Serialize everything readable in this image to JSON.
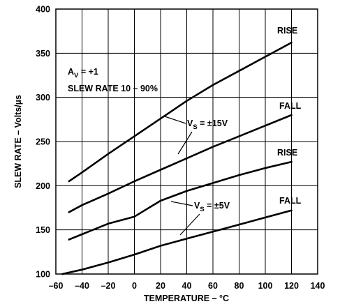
{
  "chart_data": {
    "type": "line",
    "xlabel": "TEMPERATURE – °C",
    "ylabel": "SLEW RATE – Volts/µs",
    "xlim": [
      -60,
      140
    ],
    "ylim": [
      100,
      400
    ],
    "x_ticks": [
      -60,
      -40,
      -20,
      0,
      20,
      40,
      60,
      80,
      100,
      120,
      140
    ],
    "y_ticks": [
      100,
      150,
      200,
      250,
      300,
      350,
      400
    ],
    "x_tick_labels": [
      "–60",
      "–40",
      "–20",
      "0",
      "20",
      "40",
      "60",
      "80",
      "100",
      "120",
      "140"
    ],
    "y_tick_labels": [
      "100",
      "150",
      "200",
      "250",
      "300",
      "350",
      "400"
    ],
    "grid": true,
    "series": [
      {
        "name": "RISE",
        "group": "VS = ±15V",
        "x": [
          -50,
          -40,
          -20,
          0,
          20,
          40,
          60,
          80,
          100,
          120
        ],
        "y": [
          205,
          215,
          236,
          256,
          276,
          296,
          314,
          330,
          346,
          362
        ]
      },
      {
        "name": "FALL",
        "group": "VS = ±15V",
        "x": [
          -50,
          -40,
          -20,
          0,
          20,
          40,
          60,
          80,
          100,
          120
        ],
        "y": [
          170,
          178,
          191,
          205,
          218,
          231,
          244,
          256,
          268,
          280
        ]
      },
      {
        "name": "RISE",
        "group": "VS = ±5V",
        "x": [
          -50,
          -40,
          -20,
          0,
          20,
          40,
          60,
          80,
          100,
          120
        ],
        "y": [
          139,
          145,
          157,
          165,
          183,
          194,
          203,
          212,
          220,
          227
        ]
      },
      {
        "name": "FALL",
        "group": "VS = ±5V",
        "x": [
          -55,
          -40,
          -20,
          0,
          20,
          40,
          60,
          80,
          100,
          120
        ],
        "y": [
          100,
          105,
          113,
          122,
          132,
          140,
          148,
          156,
          164,
          172
        ]
      }
    ],
    "annotations": {
      "gain": "+1",
      "gain_symbol": "A",
      "gain_subscript": "V",
      "slew_rate": "SLEW RATE 10 – 90%",
      "vs15_symbol": "V",
      "vs15_subscript": "S",
      "vs15_value": " = ±15V",
      "vs5_symbol": "V",
      "vs5_subscript": "S",
      "vs5_value": " = ±5V"
    }
  }
}
